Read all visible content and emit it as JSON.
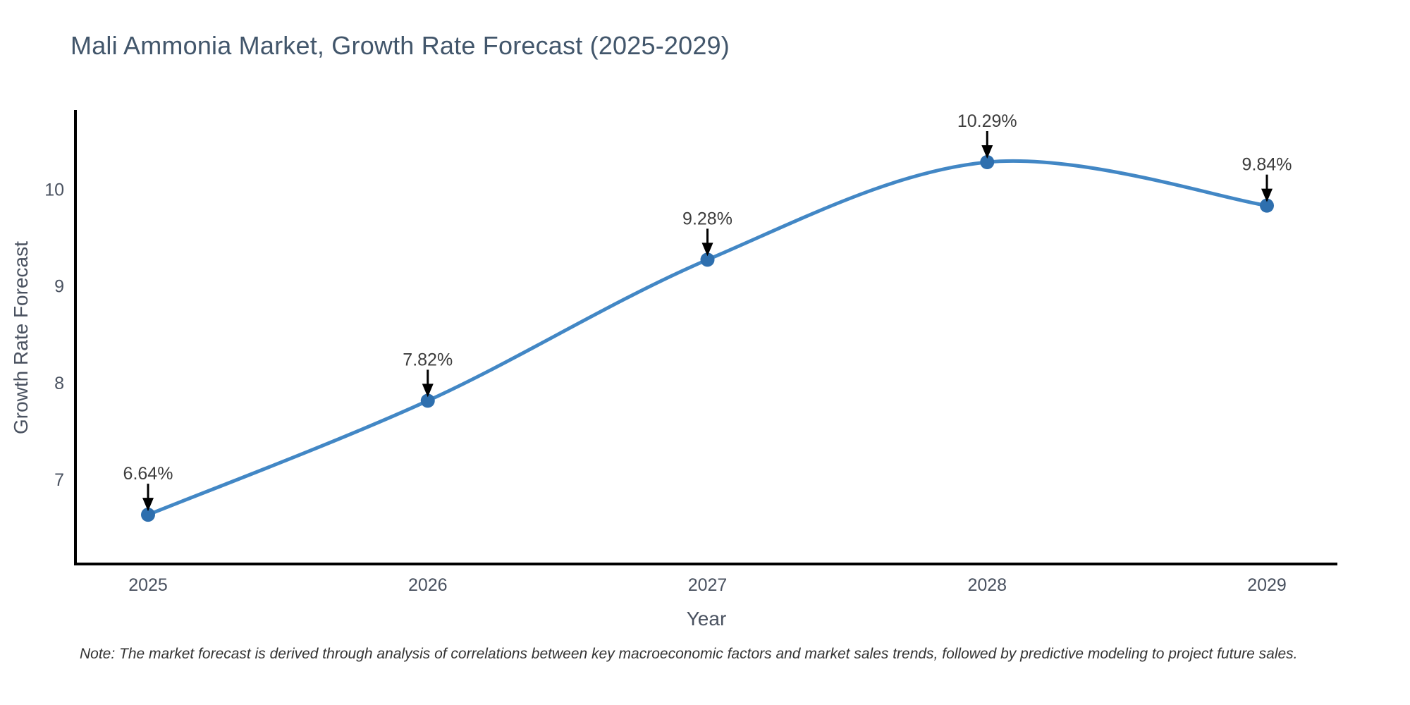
{
  "chart_data": {
    "type": "line",
    "title": "Mali Ammonia Market, Growth Rate Forecast (2025-2029)",
    "xlabel": "Year",
    "ylabel": "Growth Rate Forecast",
    "categories": [
      "2025",
      "2026",
      "2027",
      "2028",
      "2029"
    ],
    "values": [
      6.64,
      7.82,
      9.28,
      10.29,
      9.84
    ],
    "point_labels": [
      "6.64%",
      "7.82%",
      "9.28%",
      "10.29%",
      "9.84%"
    ],
    "yticks": [
      7,
      8,
      9,
      10
    ],
    "ylim": [
      6.13,
      10.83
    ],
    "grid": false,
    "legend": "none",
    "line_shape": "spline",
    "annotation_style": "down-arrow",
    "colors": {
      "line": "#4287c5",
      "marker": "#2e6fae",
      "axis": "#000000",
      "arrow": "#000000",
      "title": "#42566b",
      "tick": "#4a5260",
      "annotation": "#3d3d3d",
      "note": "#333333",
      "background": "#ffffff"
    }
  },
  "note": "Note: The market forecast is derived through analysis of correlations between key macroeconomic factors and market sales trends, followed by predictive modeling to project future sales."
}
